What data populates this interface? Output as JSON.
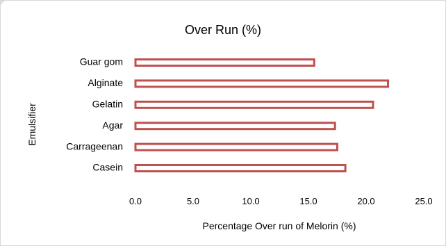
{
  "chart_data": {
    "type": "bar",
    "orientation": "horizontal",
    "title": "Over Run (%)",
    "xlabel": "Percentage Over run of Melorin (%)",
    "ylabel": "Emulsifier",
    "categories": [
      "Guar gom",
      "Alginate",
      "Gelatin",
      "Agar",
      "Carrageenan",
      "Casein"
    ],
    "values": [
      15.5,
      21.9,
      20.6,
      17.3,
      17.5,
      18.2
    ],
    "xlim": [
      0,
      25
    ],
    "xticks": [
      "0.0",
      "5.0",
      "10.0",
      "15.0",
      "20.0",
      "25.0"
    ],
    "bar_outline_color": "#c0504d",
    "bar_fill_color": "#ffffff",
    "grid": false,
    "legend": "none"
  }
}
